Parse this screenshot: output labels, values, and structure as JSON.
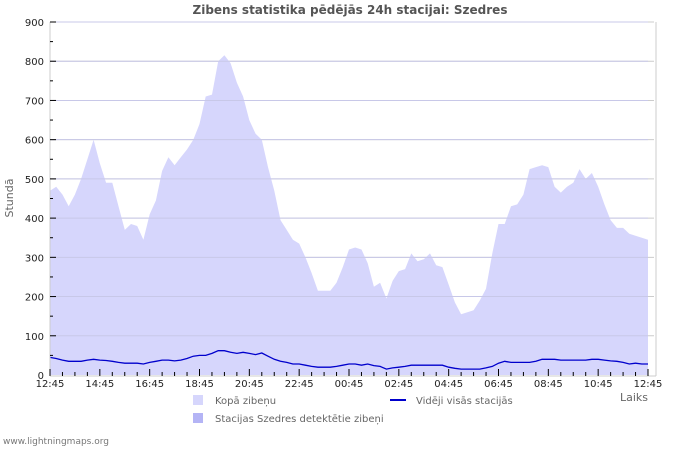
{
  "title": "Zibens statistika pēdējās 24h stacijai: Szedres",
  "watermark": "www.lightningmaps.org",
  "colors": {
    "total_fill": "#d6d6fc",
    "station_fill": "#b4b4f5",
    "avg_line": "#0000cc",
    "grid": "#cccccc",
    "axis": "#cccccc",
    "background": "#ffffff"
  },
  "chart_data": {
    "type": "area",
    "title": "Zibens statistika pēdējās 24h stacijai: Szedres",
    "xlabel": "Laiks",
    "ylabel": "Stundā",
    "ylim": [
      0,
      900
    ],
    "yticks": [
      0,
      100,
      200,
      300,
      400,
      500,
      600,
      700,
      800,
      900
    ],
    "xticks": [
      "12:45",
      "14:45",
      "16:45",
      "18:45",
      "20:45",
      "22:45",
      "00:45",
      "02:45",
      "04:45",
      "06:45",
      "08:45",
      "10:45",
      "12:45"
    ],
    "grid": true,
    "legend_position": "bottom",
    "x_step_minutes": 15,
    "x_start": "12:45",
    "series": [
      {
        "name": "Kopā zibeņu",
        "type": "area",
        "values": [
          470,
          480,
          460,
          430,
          460,
          500,
          550,
          600,
          540,
          490,
          490,
          430,
          370,
          385,
          380,
          345,
          410,
          445,
          520,
          555,
          535,
          555,
          575,
          600,
          640,
          710,
          715,
          800,
          815,
          795,
          745,
          710,
          650,
          615,
          600,
          530,
          470,
          395,
          370,
          345,
          335,
          300,
          260,
          215,
          215,
          215,
          235,
          275,
          320,
          325,
          320,
          285,
          225,
          235,
          195,
          240,
          265,
          270,
          310,
          290,
          295,
          310,
          280,
          275,
          230,
          185,
          155,
          160,
          165,
          190,
          220,
          310,
          385,
          385,
          430,
          435,
          460,
          525,
          530,
          535,
          530,
          480,
          465,
          480,
          490,
          525,
          500,
          515,
          480,
          435,
          395,
          375,
          375,
          360,
          355,
          350,
          345
        ]
      },
      {
        "name": "Stacijas Szedres detektētie zibeņi",
        "type": "area",
        "values": []
      },
      {
        "name": "Vidēji visās stacijās",
        "type": "line",
        "values": [
          45,
          42,
          38,
          35,
          35,
          35,
          38,
          40,
          38,
          37,
          35,
          32,
          30,
          30,
          30,
          28,
          32,
          35,
          38,
          38,
          36,
          38,
          42,
          48,
          50,
          50,
          55,
          62,
          62,
          58,
          55,
          58,
          55,
          52,
          56,
          48,
          40,
          35,
          32,
          28,
          28,
          25,
          22,
          20,
          20,
          20,
          22,
          25,
          28,
          28,
          25,
          28,
          24,
          22,
          15,
          18,
          20,
          22,
          25,
          25,
          25,
          25,
          25,
          25,
          20,
          17,
          15,
          15,
          15,
          15,
          18,
          22,
          30,
          35,
          32,
          32,
          32,
          32,
          35,
          40,
          40,
          40,
          38,
          38,
          38,
          38,
          38,
          40,
          40,
          38,
          36,
          35,
          32,
          28,
          30,
          28,
          28
        ]
      }
    ]
  },
  "legend": {
    "items": [
      {
        "label": "Kopā zibeņu",
        "kind": "swatch",
        "color": "#d6d6fc"
      },
      {
        "label": "Stacijas Szedres detektētie zibeņi",
        "kind": "swatch",
        "color": "#b4b4f5"
      },
      {
        "label": "Vidēji visās stacijās",
        "kind": "line",
        "color": "#0000cc"
      }
    ]
  }
}
